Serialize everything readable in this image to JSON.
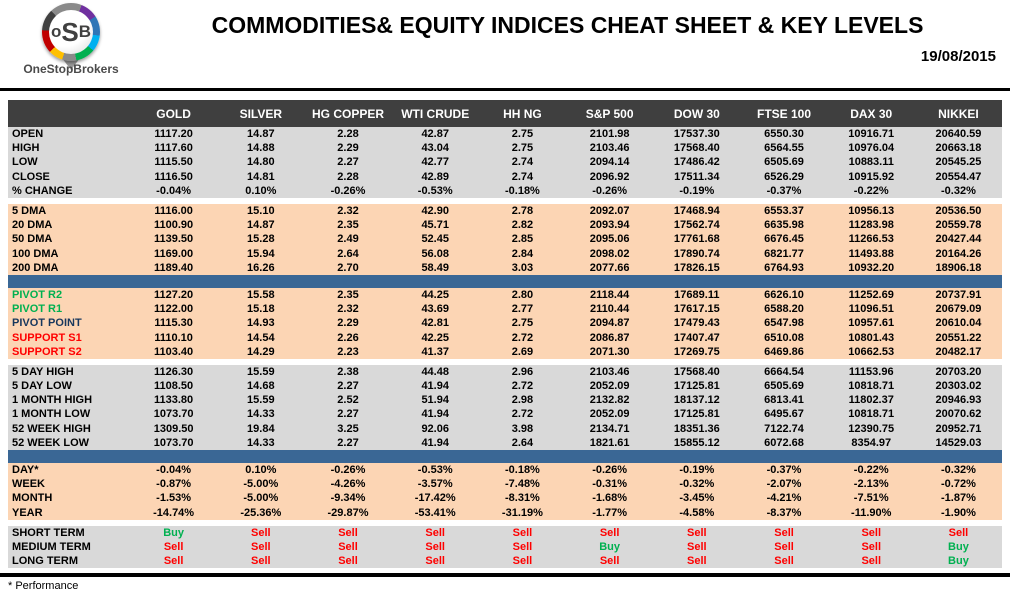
{
  "header": {
    "logo_acronym_left": "o",
    "logo_acronym_mid": "S",
    "logo_acronym_right": "B",
    "logo_brand": "OneStopBrokers",
    "title": "COMMODITIES& EQUITY INDICES CHEAT SHEET & KEY LEVELS",
    "date": "19/08/2015"
  },
  "colors": {
    "header_row_bg": "#3F3F3F",
    "gray_band": "#D9D9D9",
    "peach_band": "#FCD5B4",
    "separator_blue": "#3A6795",
    "buy_green": "#00B050",
    "sell_red": "#FF0000",
    "pivot_navy": "#17375D"
  },
  "table": {
    "columns": [
      "GOLD",
      "SILVER",
      "HG COPPER",
      "WTI CRUDE",
      "HH NG",
      "S&P 500",
      "DOW 30",
      "FTSE 100",
      "DAX 30",
      "NIKKEI"
    ],
    "sections": [
      {
        "id": "ohlc",
        "bg": "gray",
        "rows": [
          {
            "label": "OPEN",
            "values": [
              "1117.20",
              "14.87",
              "2.28",
              "42.87",
              "2.75",
              "2101.98",
              "17537.30",
              "6550.30",
              "10916.71",
              "20640.59"
            ]
          },
          {
            "label": "HIGH",
            "values": [
              "1117.60",
              "14.88",
              "2.29",
              "43.04",
              "2.75",
              "2103.46",
              "17568.40",
              "6564.55",
              "10976.04",
              "20663.18"
            ]
          },
          {
            "label": "LOW",
            "values": [
              "1115.50",
              "14.80",
              "2.27",
              "42.77",
              "2.74",
              "2094.14",
              "17486.42",
              "6505.69",
              "10883.11",
              "20545.25"
            ]
          },
          {
            "label": "CLOSE",
            "values": [
              "1116.50",
              "14.81",
              "2.28",
              "42.89",
              "2.74",
              "2096.92",
              "17511.34",
              "6526.29",
              "10915.92",
              "20554.47"
            ]
          },
          {
            "label": "% CHANGE",
            "values": [
              "-0.04%",
              "0.10%",
              "-0.26%",
              "-0.53%",
              "-0.18%",
              "-0.26%",
              "-0.19%",
              "-0.37%",
              "-0.22%",
              "-0.32%"
            ]
          }
        ]
      },
      {
        "id": "dma",
        "bg": "peach",
        "gap_before": true,
        "rows": [
          {
            "label": "5 DMA",
            "values": [
              "1116.00",
              "15.10",
              "2.32",
              "42.90",
              "2.78",
              "2092.07",
              "17468.94",
              "6553.37",
              "10956.13",
              "20536.50"
            ]
          },
          {
            "label": "20 DMA",
            "values": [
              "1100.90",
              "14.87",
              "2.35",
              "45.71",
              "2.82",
              "2093.94",
              "17562.74",
              "6635.98",
              "11283.98",
              "20559.78"
            ]
          },
          {
            "label": "50 DMA",
            "values": [
              "1139.50",
              "15.28",
              "2.49",
              "52.45",
              "2.85",
              "2095.06",
              "17761.68",
              "6676.45",
              "11266.53",
              "20427.44"
            ]
          },
          {
            "label": "100 DMA",
            "values": [
              "1169.00",
              "15.94",
              "2.64",
              "56.08",
              "2.84",
              "2098.02",
              "17890.74",
              "6821.77",
              "11493.88",
              "20164.26"
            ]
          },
          {
            "label": "200 DMA",
            "values": [
              "1189.40",
              "16.26",
              "2.70",
              "58.49",
              "3.03",
              "2077.66",
              "17826.15",
              "6764.93",
              "10932.20",
              "18906.18"
            ]
          }
        ]
      },
      {
        "id": "pivots",
        "bg": "peach",
        "separator_before": true,
        "rows": [
          {
            "label": "PIVOT R2",
            "label_color": "green",
            "values": [
              "1127.20",
              "15.58",
              "2.35",
              "44.25",
              "2.80",
              "2118.44",
              "17689.11",
              "6626.10",
              "11252.69",
              "20737.91"
            ]
          },
          {
            "label": "PIVOT R1",
            "label_color": "green",
            "values": [
              "1122.00",
              "15.18",
              "2.32",
              "43.69",
              "2.77",
              "2110.44",
              "17617.15",
              "6588.20",
              "11096.51",
              "20679.09"
            ]
          },
          {
            "label": "PIVOT POINT",
            "label_color": "navy",
            "values": [
              "1115.30",
              "14.93",
              "2.29",
              "42.81",
              "2.75",
              "2094.87",
              "17479.43",
              "6547.98",
              "10957.61",
              "20610.04"
            ]
          },
          {
            "label": "SUPPORT S1",
            "label_color": "red",
            "values": [
              "1110.10",
              "14.54",
              "2.26",
              "42.25",
              "2.72",
              "2086.87",
              "17407.47",
              "6510.08",
              "10801.43",
              "20551.22"
            ]
          },
          {
            "label": "SUPPORT S2",
            "label_color": "red",
            "values": [
              "1103.40",
              "14.29",
              "2.23",
              "41.37",
              "2.69",
              "2071.30",
              "17269.75",
              "6469.86",
              "10662.53",
              "20482.17"
            ]
          }
        ]
      },
      {
        "id": "highs-lows",
        "bg": "gray",
        "gap_before": true,
        "rows": [
          {
            "label": "5 DAY HIGH",
            "values": [
              "1126.30",
              "15.59",
              "2.38",
              "44.48",
              "2.96",
              "2103.46",
              "17568.40",
              "6664.54",
              "11153.96",
              "20703.20"
            ]
          },
          {
            "label": "5 DAY LOW",
            "values": [
              "1108.50",
              "14.68",
              "2.27",
              "41.94",
              "2.72",
              "2052.09",
              "17125.81",
              "6505.69",
              "10818.71",
              "20303.02"
            ]
          },
          {
            "label": "1 MONTH HIGH",
            "values": [
              "1133.80",
              "15.59",
              "2.52",
              "51.94",
              "2.98",
              "2132.82",
              "18137.12",
              "6813.41",
              "11802.37",
              "20946.93"
            ]
          },
          {
            "label": "1 MONTH LOW",
            "values": [
              "1073.70",
              "14.33",
              "2.27",
              "41.94",
              "2.72",
              "2052.09",
              "17125.81",
              "6495.67",
              "10818.71",
              "20070.62"
            ]
          },
          {
            "label": "52 WEEK HIGH",
            "values": [
              "1309.50",
              "19.84",
              "3.25",
              "92.06",
              "3.98",
              "2134.71",
              "18351.36",
              "7122.74",
              "12390.75",
              "20952.71"
            ]
          },
          {
            "label": "52 WEEK LOW",
            "values": [
              "1073.70",
              "14.33",
              "2.27",
              "41.94",
              "2.64",
              "1821.61",
              "15855.12",
              "6072.68",
              "8354.97",
              "14529.03"
            ]
          }
        ]
      },
      {
        "id": "performance",
        "bg": "peach",
        "separator_before": true,
        "rows": [
          {
            "label": "DAY*",
            "values": [
              "-0.04%",
              "0.10%",
              "-0.26%",
              "-0.53%",
              "-0.18%",
              "-0.26%",
              "-0.19%",
              "-0.37%",
              "-0.22%",
              "-0.32%"
            ]
          },
          {
            "label": "WEEK",
            "values": [
              "-0.87%",
              "-5.00%",
              "-4.26%",
              "-3.57%",
              "-7.48%",
              "-0.31%",
              "-0.32%",
              "-2.07%",
              "-2.13%",
              "-0.72%"
            ]
          },
          {
            "label": "MONTH",
            "values": [
              "-1.53%",
              "-5.00%",
              "-9.34%",
              "-17.42%",
              "-8.31%",
              "-1.68%",
              "-3.45%",
              "-4.21%",
              "-7.51%",
              "-1.87%"
            ]
          },
          {
            "label": "YEAR",
            "values": [
              "-14.74%",
              "-25.36%",
              "-29.87%",
              "-53.41%",
              "-31.19%",
              "-1.77%",
              "-4.58%",
              "-8.37%",
              "-11.90%",
              "-1.90%"
            ]
          }
        ]
      },
      {
        "id": "signals",
        "bg": "gray",
        "gap_before": true,
        "signal": true,
        "rows": [
          {
            "label": "SHORT TERM",
            "values": [
              "Buy",
              "Sell",
              "Sell",
              "Sell",
              "Sell",
              "Sell",
              "Sell",
              "Sell",
              "Sell",
              "Sell"
            ]
          },
          {
            "label": "MEDIUM TERM",
            "values": [
              "Sell",
              "Sell",
              "Sell",
              "Sell",
              "Sell",
              "Buy",
              "Sell",
              "Sell",
              "Sell",
              "Buy"
            ]
          },
          {
            "label": "LONG TERM",
            "values": [
              "Sell",
              "Sell",
              "Sell",
              "Sell",
              "Sell",
              "Sell",
              "Sell",
              "Sell",
              "Sell",
              "Buy"
            ]
          }
        ]
      }
    ]
  },
  "footer": {
    "note": "* Performance"
  }
}
